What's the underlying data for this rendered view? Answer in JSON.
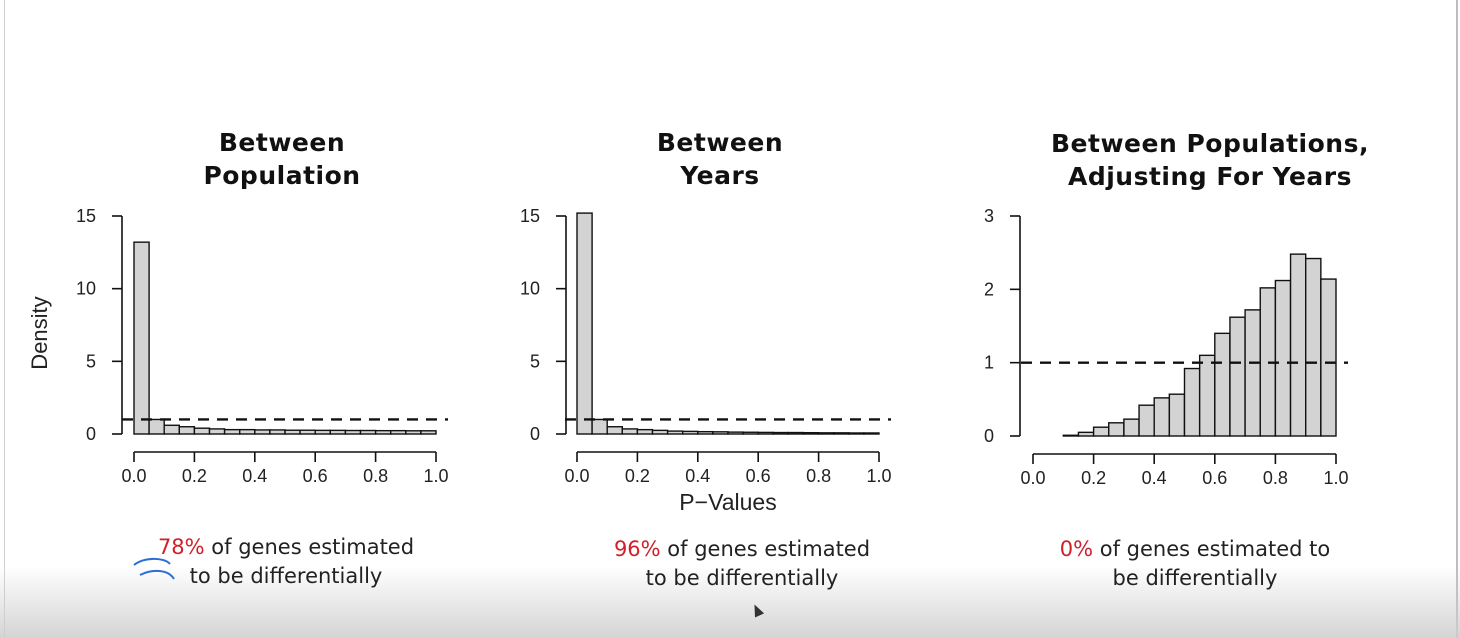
{
  "panels": [
    {
      "title_line1": "Between",
      "title_line2": "Population",
      "caption_pct": "78%",
      "caption_rest1": " of genes estimated",
      "caption_line2": "to be differentially"
    },
    {
      "title_line1": "Between",
      "title_line2": "Years",
      "caption_pct": "96%",
      "caption_rest1": " of genes estimated",
      "caption_line2": "to be differentially"
    },
    {
      "title_line1": "Between Populations,",
      "title_line2": "Adjusting For Years",
      "caption_pct": "0%",
      "caption_rest1": " of genes estimated to",
      "caption_line2": "be differentially"
    }
  ],
  "chart_data": [
    {
      "type": "bar",
      "title": "Between Population",
      "ylabel": "Density",
      "xlabel": "",
      "xlim": [
        0,
        1
      ],
      "ylim": [
        0,
        15
      ],
      "yticks": [
        "0",
        "5",
        "10",
        "15"
      ],
      "xticks": [
        "0.0",
        "0.2",
        "0.4",
        "0.6",
        "0.8",
        "1.0"
      ],
      "bin_width": 0.05,
      "values": [
        13.2,
        1.0,
        0.6,
        0.5,
        0.4,
        0.35,
        0.3,
        0.3,
        0.28,
        0.28,
        0.26,
        0.26,
        0.25,
        0.25,
        0.24,
        0.24,
        0.23,
        0.23,
        0.22,
        0.22
      ],
      "reference_line": 1,
      "bar_fill": "#d3d3d3"
    },
    {
      "type": "bar",
      "title": "Between Years",
      "ylabel": "",
      "xlabel": "P−Values",
      "xlim": [
        0,
        1
      ],
      "ylim": [
        0,
        15
      ],
      "yticks": [
        "0",
        "5",
        "10",
        "15"
      ],
      "xticks": [
        "0.0",
        "0.2",
        "0.4",
        "0.6",
        "0.8",
        "1.0"
      ],
      "bin_width": 0.05,
      "values": [
        15.2,
        1.0,
        0.5,
        0.35,
        0.3,
        0.25,
        0.2,
        0.18,
        0.16,
        0.15,
        0.13,
        0.12,
        0.11,
        0.1,
        0.1,
        0.09,
        0.08,
        0.08,
        0.07,
        0.07
      ],
      "reference_line": 1,
      "bar_fill": "#d3d3d3"
    },
    {
      "type": "bar",
      "title": "Between Populations, Adjusting For Years",
      "ylabel": "",
      "xlabel": "",
      "xlim": [
        0,
        1
      ],
      "ylim": [
        0,
        3
      ],
      "yticks": [
        "0",
        "1",
        "2",
        "3"
      ],
      "xticks": [
        "0.0",
        "0.2",
        "0.4",
        "0.6",
        "0.8",
        "1.0"
      ],
      "bin_width": 0.05,
      "values": [
        0.0,
        0.0,
        0.01,
        0.05,
        0.12,
        0.18,
        0.23,
        0.42,
        0.52,
        0.57,
        0.92,
        1.1,
        1.4,
        1.62,
        1.72,
        2.02,
        2.12,
        2.48,
        2.42,
        2.14
      ],
      "reference_line": 1,
      "bar_fill": "#d3d3d3"
    }
  ]
}
